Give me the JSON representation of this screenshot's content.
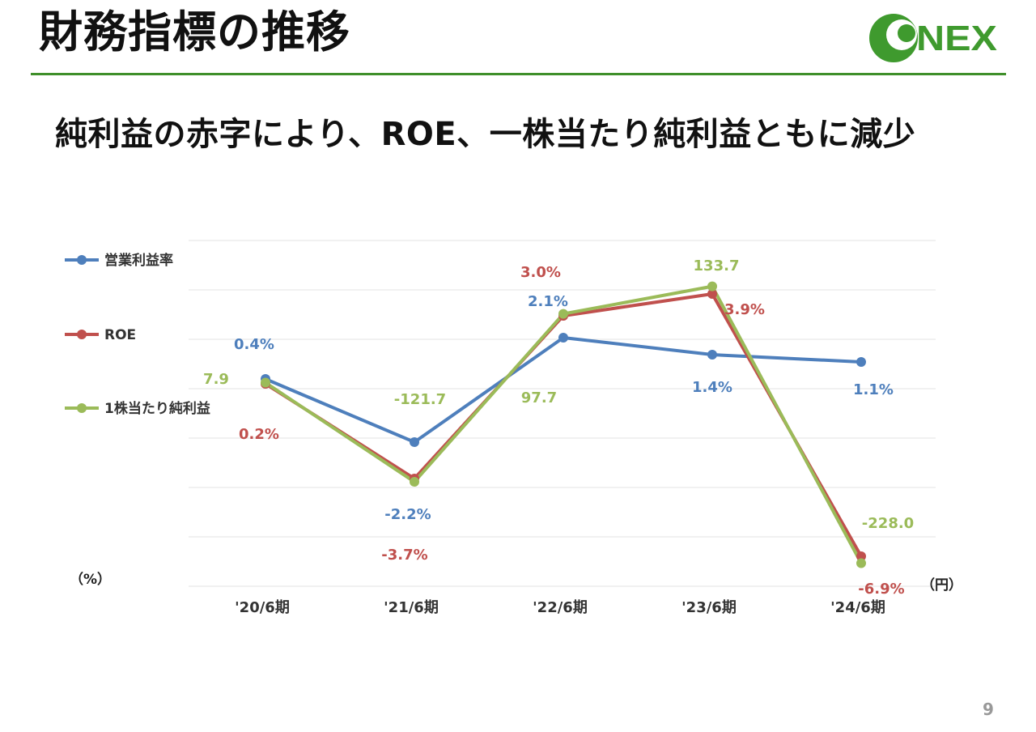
{
  "page": {
    "title": "財務指標の推移",
    "subtitle": "純利益の赤字により、ROE、一株当たり純利益ともに減少",
    "logo_text": "NEX",
    "page_number": "9"
  },
  "colors": {
    "rule": "#3f8f2a",
    "logo_green": "#3f9a2e",
    "series_1": "#4e7fbc",
    "series_2": "#c0504d",
    "series_3": "#9bbb59"
  },
  "chart_data": {
    "type": "line",
    "categories": [
      "'20/6期",
      "'21/6期",
      "'22/6期",
      "'23/6期",
      "'24/6期"
    ],
    "left_axis_unit": "（%）",
    "right_axis_unit": "（円）",
    "legend_position": "left",
    "grid": true,
    "series": [
      {
        "name": "営業利益率",
        "axis": "left",
        "values": [
          0.4,
          -2.2,
          2.1,
          1.4,
          1.1
        ],
        "labels": [
          "0.4%",
          "-2.2%",
          "2.1%",
          "1.4%",
          "1.1%"
        ]
      },
      {
        "name": "ROE",
        "axis": "left",
        "values": [
          0.2,
          -3.7,
          3.0,
          3.9,
          -6.9
        ],
        "labels": [
          "0.2%",
          "-3.7%",
          "3.0%",
          "3.9%",
          "-6.9%"
        ]
      },
      {
        "name": "1株当たり純利益",
        "axis": "right",
        "values": [
          7.9,
          -121.7,
          97.7,
          133.7,
          -228.0
        ],
        "labels": [
          "7.9",
          "-121.7",
          "97.7",
          "133.7",
          "-228.0"
        ]
      }
    ]
  }
}
